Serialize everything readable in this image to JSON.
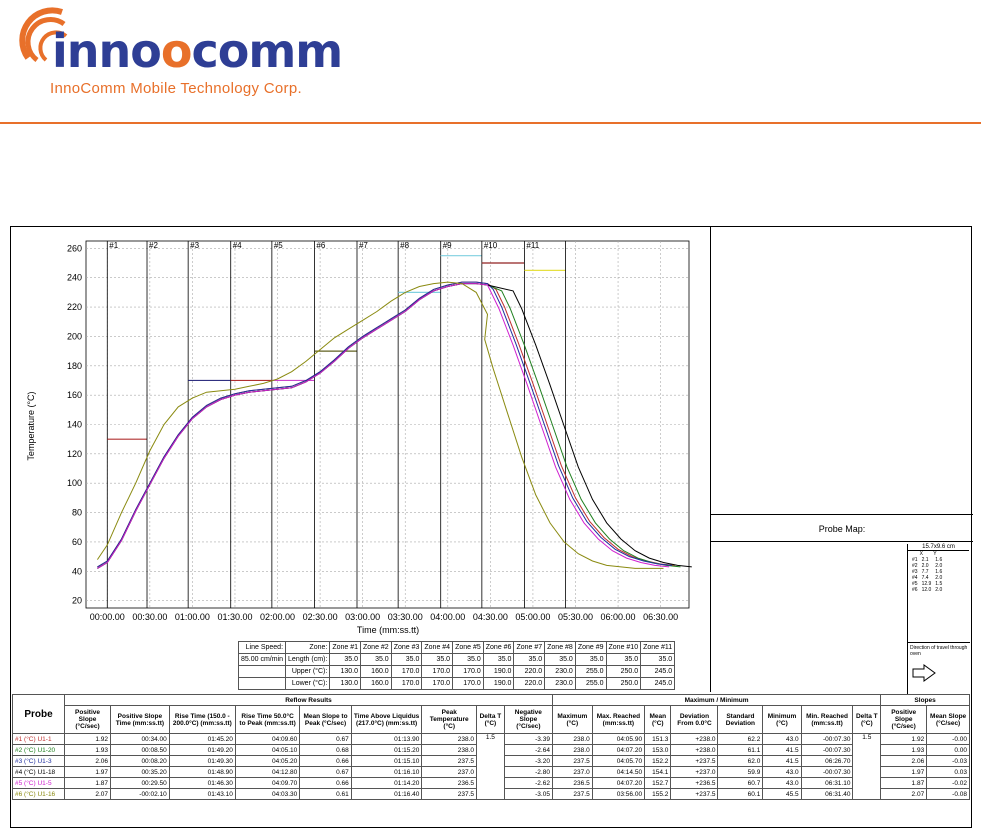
{
  "header": {
    "logo_text_start": "inno",
    "logo_text_o": "o",
    "logo_text_end": "comm",
    "company_name": "InnoComm Mobile Technology Corp.",
    "brand_color": "#2e3e95",
    "accent_color": "#e8702a"
  },
  "chart_data": {
    "type": "line",
    "ylabel": "Temperature (°C)",
    "xlabel": "Time (mm:ss.tt)",
    "ylim": [
      15,
      265
    ],
    "yticks": [
      20,
      40,
      60,
      80,
      100,
      120,
      140,
      160,
      180,
      200,
      220,
      240,
      260
    ],
    "xlim": [
      -15,
      410
    ],
    "xticks": [
      "00:00.00",
      "00:30.00",
      "01:00.00",
      "01:30.00",
      "02:00.00",
      "02:30.00",
      "03:00.00",
      "03:30.00",
      "04:00.00",
      "04:30.00",
      "05:00.00",
      "05:30.00",
      "06:00.00",
      "06:30.00"
    ],
    "zones": [
      {
        "label": "#1",
        "start": 0,
        "end": 28,
        "set": 130,
        "color": "#b03030"
      },
      {
        "label": "#2",
        "start": 28,
        "end": 57,
        "set": null,
        "color": "#999999"
      },
      {
        "label": "#3",
        "start": 57,
        "end": 87,
        "set": 170,
        "color": "#303080"
      },
      {
        "label": "#4",
        "start": 87,
        "end": 116,
        "set": 170,
        "color": "#b03030"
      },
      {
        "label": "#5",
        "start": 116,
        "end": 146,
        "set": 170,
        "color": "#cc44cc"
      },
      {
        "label": "#6",
        "start": 146,
        "end": 176,
        "set": 190,
        "color": "#606020"
      },
      {
        "label": "#7",
        "start": 176,
        "end": 205,
        "set": null,
        "color": "#999999"
      },
      {
        "label": "#8",
        "start": 205,
        "end": 235,
        "set": 230,
        "color": "#80d0e0"
      },
      {
        "label": "#9",
        "start": 235,
        "end": 264,
        "set": 255,
        "color": "#80d0e0"
      },
      {
        "label": "#10",
        "start": 264,
        "end": 294,
        "set": 250,
        "color": "#902020"
      },
      {
        "label": "#11",
        "start": 294,
        "end": 323,
        "set": 245,
        "color": "#e6e040"
      }
    ],
    "series": [
      {
        "name": "#1 (°C) U1-1",
        "color": "#c03030",
        "offset": 0,
        "cool": 0
      },
      {
        "name": "#2 (°C) U1-20",
        "color": "#208020",
        "offset": -1,
        "cool": 4
      },
      {
        "name": "#3 (°C) U1-3",
        "color": "#2030a0",
        "offset": 0,
        "cool": -2
      },
      {
        "name": "#4 (°C) U1-18",
        "color": "#000000",
        "offset": -1,
        "cool": 12
      },
      {
        "name": "#5 (°C) U1-5",
        "color": "#d020d0",
        "offset": -1,
        "cool": -4
      },
      {
        "name": "#6 (°C) U1-16",
        "color": "#8a8a10",
        "offset": 0,
        "cool": -8,
        "early": true
      }
    ]
  },
  "zones_table": {
    "line_speed_label": "Line Speed:",
    "line_speed_value": "85.00 cm/min",
    "row_labels": [
      "Zone:",
      "Length (cm):",
      "Upper (°C):",
      "Lower (°C):"
    ],
    "zones": [
      "Zone #1",
      "Zone #2",
      "Zone #3",
      "Zone #4",
      "Zone #5",
      "Zone #6",
      "Zone #7",
      "Zone #8",
      "Zone #9",
      "Zone #10",
      "Zone #11"
    ],
    "lengths": [
      "35.0",
      "35.0",
      "35.0",
      "35.0",
      "35.0",
      "35.0",
      "35.0",
      "35.0",
      "35.0",
      "35.0",
      "35.0"
    ],
    "upper": [
      "130.0",
      "160.0",
      "170.0",
      "170.0",
      "170.0",
      "190.0",
      "220.0",
      "230.0",
      "255.0",
      "250.0",
      "245.0"
    ],
    "lower": [
      "130.0",
      "160.0",
      "170.0",
      "170.0",
      "170.0",
      "190.0",
      "220.0",
      "230.0",
      "255.0",
      "250.0",
      "245.0"
    ]
  },
  "probe_map": {
    "title": "Probe Map:",
    "dims": "15.7x9.6 cm",
    "col_x": "X",
    "col_y": "Y",
    "rows": [
      [
        "#1",
        "2.1",
        "1.6"
      ],
      [
        "#2",
        "2.0",
        "2.0"
      ],
      [
        "#3",
        "7.7",
        "1.6"
      ],
      [
        "#4",
        "7.4",
        "2.0"
      ],
      [
        "#5",
        "12.9",
        "1.5"
      ],
      [
        "#6",
        "12.0",
        "2.0"
      ]
    ],
    "direction": "Direction of travel through oven"
  },
  "results": {
    "probe_label": "Probe",
    "group_reflow": "Reflow Results",
    "group_maxmin": "Maximum / Minimum",
    "group_slopes": "Slopes",
    "headers": [
      "Positive Slope (°C/sec)",
      "Positive Slope Time (mm:ss.tt)",
      "Rise Time (150.0 - 200.0°C) (mm:ss.tt)",
      "Rise Time 50.0°C to Peak (mm:ss.tt)",
      "Mean Slope to Peak (°C/sec)",
      "Time Above Liquidus (217.0°C) (mm:ss.tt)",
      "Peak Temperature (°C)",
      "Delta T (°C)",
      "Negative Slope (°C/sec)",
      "Maximum (°C)",
      "Max. Reached (mm:ss.tt)",
      "Mean (°C)",
      "Deviation From 0.0°C",
      "Standard Deviation",
      "Minimum (°C)",
      "Min. Reached (mm:ss.tt)",
      "Delta T (°C)",
      "Positive Slope (°C/sec)",
      "Mean Slope (°C/sec)"
    ],
    "delta_t_1": "1.5",
    "delta_t_2": "1.5",
    "rows": [
      {
        "probe": "#1 (°C) U1-1",
        "color": "#c03030",
        "v": [
          "1.92",
          "00:34.00",
          "01:45.20",
          "04:09.60",
          "0.67",
          "01:13.90",
          "238.0",
          "-3.39",
          "238.0",
          "04:05.90",
          "151.3",
          "+238.0",
          "62.2",
          "43.0",
          "-00:07.30",
          "1.92",
          "-0.00"
        ]
      },
      {
        "probe": "#2 (°C) U1-20",
        "color": "#208020",
        "v": [
          "1.93",
          "00:08.50",
          "01:49.20",
          "04:05.10",
          "0.68",
          "01:15.20",
          "238.0",
          "-2.64",
          "238.0",
          "04:07.20",
          "153.0",
          "+238.0",
          "61.1",
          "41.5",
          "-00:07.30",
          "1.93",
          "0.00"
        ]
      },
      {
        "probe": "#3 (°C) U1-3",
        "color": "#2030a0",
        "v": [
          "2.06",
          "00:08.20",
          "01:49.30",
          "04:05.20",
          "0.66",
          "01:15.10",
          "237.5",
          "-3.20",
          "237.5",
          "04:05.70",
          "152.2",
          "+237.5",
          "62.0",
          "41.5",
          "06:26.70",
          "2.06",
          "-0.03"
        ]
      },
      {
        "probe": "#4 (°C) U1-18",
        "color": "#000000",
        "v": [
          "1.97",
          "00:35.20",
          "01:48.90",
          "04:12.80",
          "0.67",
          "01:16.10",
          "237.0",
          "-2.80",
          "237.0",
          "04:14.50",
          "154.1",
          "+237.0",
          "59.9",
          "43.0",
          "-00:07.30",
          "1.97",
          "0.03"
        ]
      },
      {
        "probe": "#5 (°C) U1-5",
        "color": "#d020d0",
        "v": [
          "1.87",
          "00:29.50",
          "01:46.30",
          "04:09.70",
          "0.66",
          "01:14.20",
          "236.5",
          "-2.62",
          "236.5",
          "04:07.20",
          "152.7",
          "+236.5",
          "60.7",
          "43.0",
          "06:31.10",
          "1.87",
          "-0.02"
        ]
      },
      {
        "probe": "#6 (°C) U1-16",
        "color": "#8a8a10",
        "v": [
          "2.07",
          "-00:02.10",
          "01:43.10",
          "04:03.30",
          "0.61",
          "01:16.40",
          "237.5",
          "-3.05",
          "237.5",
          "03:56.00",
          "155.2",
          "+237.5",
          "60.1",
          "45.5",
          "06:31.40",
          "2.07",
          "-0.08"
        ]
      }
    ]
  }
}
